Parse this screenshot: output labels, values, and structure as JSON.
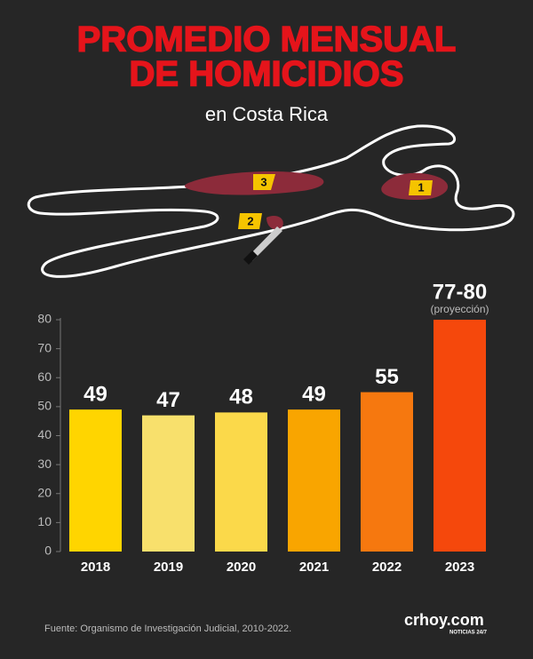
{
  "chart_data": {
    "type": "bar",
    "title": [
      "PROMEDIO MENSUAL",
      "DE HOMICIDIOS"
    ],
    "subtitle": "en Costa Rica",
    "evidence_markers": [
      "3",
      "2",
      "1"
    ],
    "categories": [
      "2018",
      "2019",
      "2020",
      "2021",
      "2022",
      "2023"
    ],
    "values": [
      49,
      47,
      48,
      49,
      55,
      80
    ],
    "value_labels": [
      "49",
      "47",
      "48",
      "49",
      "55",
      "77-80"
    ],
    "annotation": "(proyección)",
    "colors": [
      "#ffd500",
      "#f8e06c",
      "#fbd94a",
      "#f9a500",
      "#f6780f",
      "#f5480c"
    ],
    "ylim": [
      0,
      80
    ],
    "yticks": [
      0,
      10,
      20,
      30,
      40,
      50,
      60,
      70,
      80
    ],
    "grid": false,
    "source": "Fuente: Organismo de Investigación Judicial, 2010-2022.",
    "brand": "crhoy.com",
    "brand_tagline": "NOTICIAS 24/7"
  }
}
